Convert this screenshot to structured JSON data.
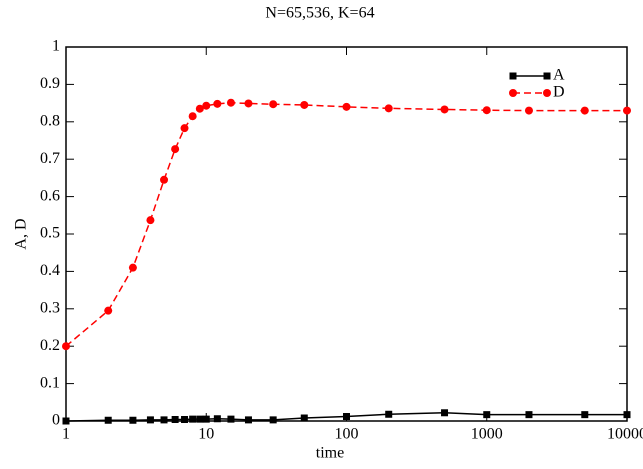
{
  "chart_data": {
    "type": "line",
    "title": "N=65,536, K=64",
    "x_label": "time",
    "y_label": "A, D",
    "x": [
      1,
      2,
      3,
      4,
      5,
      6,
      7,
      8,
      9,
      10,
      12,
      15,
      20,
      30,
      50,
      100,
      200,
      500,
      1000,
      2000,
      5000,
      10000
    ],
    "series": [
      {
        "name": "A",
        "color": "#000000",
        "linestyle": "solid",
        "marker": "square",
        "values": [
          0,
          0.002,
          0.002,
          0.003,
          0.003,
          0.004,
          0.004,
          0.005,
          0.005,
          0.005,
          0.006,
          0.005,
          0.003,
          0.003,
          0.008,
          0.012,
          0.018,
          0.022,
          0.017,
          0.017,
          0.017,
          0.017
        ]
      },
      {
        "name": "D",
        "color": "#ff0000",
        "linestyle": "dashed",
        "marker": "circle",
        "values": [
          0.2,
          0.295,
          0.41,
          0.537,
          0.645,
          0.727,
          0.783,
          0.815,
          0.835,
          0.843,
          0.848,
          0.851,
          0.849,
          0.847,
          0.845,
          0.84,
          0.836,
          0.833,
          0.831,
          0.83,
          0.83,
          0.83
        ]
      }
    ],
    "xscale": "log",
    "xlim": [
      1,
      10000
    ],
    "xticks": [
      1,
      10,
      100,
      1000,
      10000
    ],
    "ylim": [
      0,
      1
    ],
    "yticks": [
      0,
      0.1,
      0.2,
      0.3,
      0.4,
      0.5,
      0.6,
      0.7,
      0.8,
      0.9,
      1
    ],
    "grid": false,
    "legend": "upper right"
  }
}
